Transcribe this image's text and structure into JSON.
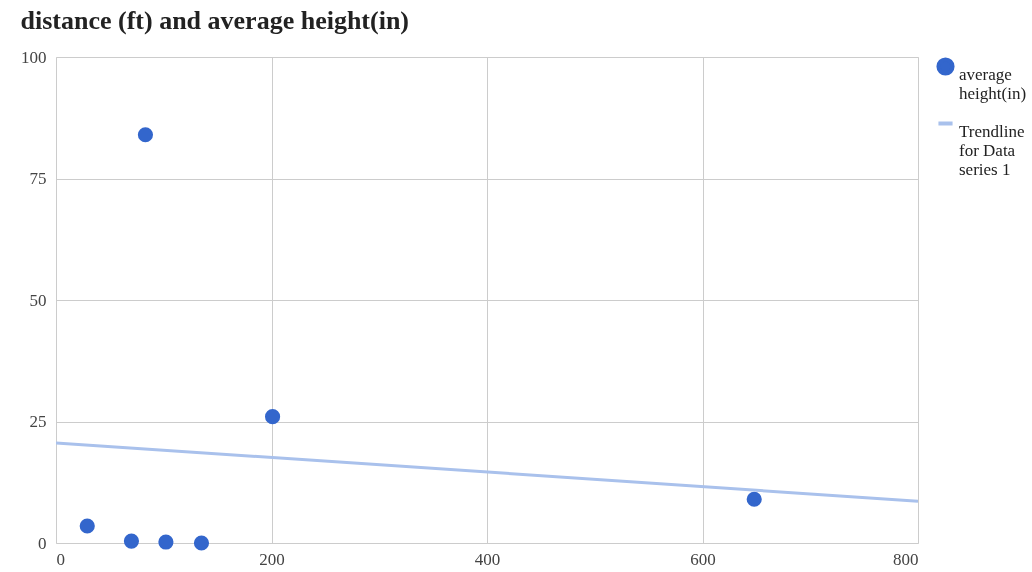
{
  "chart_data": {
    "type": "scatter",
    "title": "distance (ft) and average height(in)",
    "x": [
      29,
      83,
      70,
      102,
      135,
      201,
      648
    ],
    "series": [
      {
        "name": "average height(in)",
        "color": "#3366cc",
        "marker": "circle",
        "values": [
          3.5,
          84,
          0.4,
          0.2,
          0,
          26,
          9
        ]
      },
      {
        "name": "Trendline for Data series 1",
        "type": "line",
        "color": "#a9c1ec",
        "marker": "none",
        "x": [
          0,
          800
        ],
        "values": [
          20.6,
          8.6
        ]
      }
    ],
    "xlim": [
      0,
      800
    ],
    "xticks": [
      0,
      200,
      400,
      600,
      800
    ],
    "ylim": [
      0,
      100
    ],
    "yticks": [
      0,
      25,
      50,
      75,
      100
    ],
    "grid": true,
    "legend": "right"
  }
}
